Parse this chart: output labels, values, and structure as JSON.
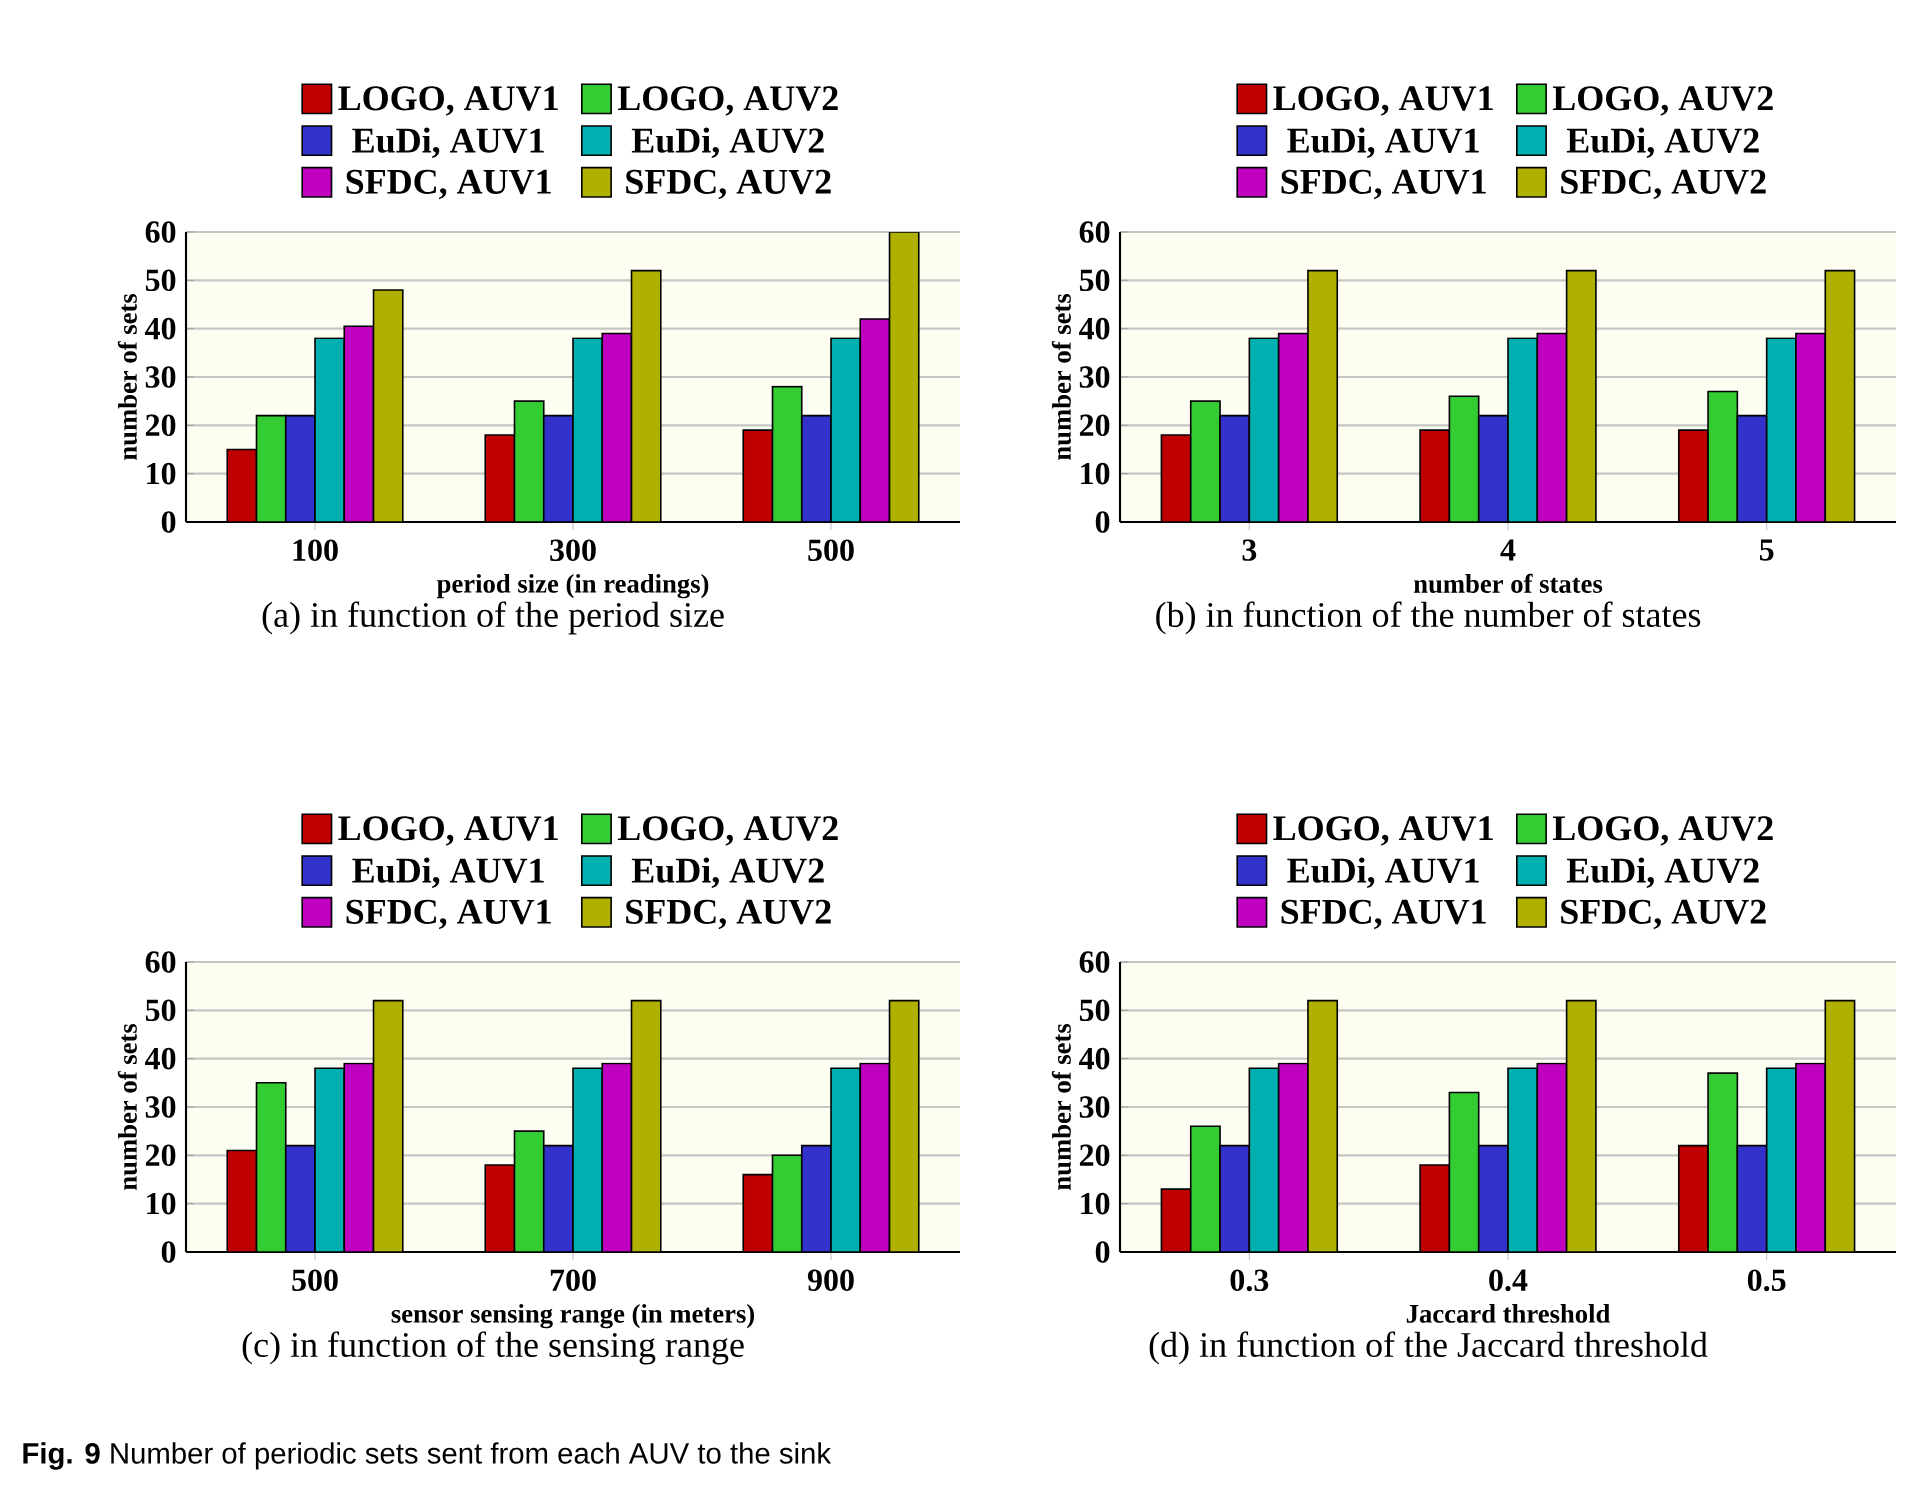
{
  "chart_data": [
    {
      "type": "bar",
      "xlabel": "period size (in readings)",
      "ylabel": "number of sets",
      "categories": [
        "100",
        "300",
        "500"
      ],
      "ylim": [
        0,
        60
      ],
      "yticks": [
        0,
        10,
        20,
        30,
        40,
        50,
        60
      ],
      "grid": "y",
      "legend": "top",
      "series": [
        {
          "name": "LOGO, AUV1",
          "color": "#c00000",
          "values": [
            15,
            18,
            19
          ]
        },
        {
          "name": "LOGO, AUV2",
          "color": "#33cc33",
          "values": [
            22,
            25,
            28
          ]
        },
        {
          "name": "EuDi, AUV1",
          "color": "#3333cc",
          "values": [
            22,
            22,
            22
          ]
        },
        {
          "name": "EuDi, AUV2",
          "color": "#00b0b0",
          "values": [
            38,
            38,
            38
          ]
        },
        {
          "name": "SFDC, AUV1",
          "color": "#c000c0",
          "values": [
            40.5,
            39,
            42
          ]
        },
        {
          "name": "SFDC, AUV2",
          "color": "#b0b000",
          "values": [
            48,
            52,
            60
          ]
        }
      ],
      "annotations": [
        "(a) in function of the period size"
      ]
    },
    {
      "type": "bar",
      "xlabel": "number of states",
      "ylabel": "number of sets",
      "categories": [
        "3",
        "4",
        "5"
      ],
      "ylim": [
        0,
        60
      ],
      "yticks": [
        0,
        10,
        20,
        30,
        40,
        50,
        60
      ],
      "grid": "y",
      "legend": "top",
      "series": [
        {
          "name": "LOGO, AUV1",
          "color": "#c00000",
          "values": [
            18,
            19,
            19
          ]
        },
        {
          "name": "LOGO, AUV2",
          "color": "#33cc33",
          "values": [
            25,
            26,
            27
          ]
        },
        {
          "name": "EuDi, AUV1",
          "color": "#3333cc",
          "values": [
            22,
            22,
            22
          ]
        },
        {
          "name": "EuDi, AUV2",
          "color": "#00b0b0",
          "values": [
            38,
            38,
            38
          ]
        },
        {
          "name": "SFDC, AUV1",
          "color": "#c000c0",
          "values": [
            39,
            39,
            39
          ]
        },
        {
          "name": "SFDC, AUV2",
          "color": "#b0b000",
          "values": [
            52,
            52,
            52
          ]
        }
      ],
      "annotations": [
        "(b) in function of the number of states"
      ]
    },
    {
      "type": "bar",
      "xlabel": "sensor sensing range (in meters)",
      "ylabel": "number of sets",
      "categories": [
        "500",
        "700",
        "900"
      ],
      "ylim": [
        0,
        60
      ],
      "yticks": [
        0,
        10,
        20,
        30,
        40,
        50,
        60
      ],
      "grid": "y",
      "legend": "top",
      "series": [
        {
          "name": "LOGO, AUV1",
          "color": "#c00000",
          "values": [
            21,
            18,
            16
          ]
        },
        {
          "name": "LOGO, AUV2",
          "color": "#33cc33",
          "values": [
            35,
            25,
            20
          ]
        },
        {
          "name": "EuDi, AUV1",
          "color": "#3333cc",
          "values": [
            22,
            22,
            22
          ]
        },
        {
          "name": "EuDi, AUV2",
          "color": "#00b0b0",
          "values": [
            38,
            38,
            38
          ]
        },
        {
          "name": "SFDC, AUV1",
          "color": "#c000c0",
          "values": [
            39,
            39,
            39
          ]
        },
        {
          "name": "SFDC, AUV2",
          "color": "#b0b000",
          "values": [
            52,
            52,
            52
          ]
        }
      ],
      "annotations": [
        "(c) in function of the sensing range"
      ]
    },
    {
      "type": "bar",
      "xlabel": "Jaccard threshold",
      "ylabel": "number of sets",
      "categories": [
        "0.3",
        "0.4",
        "0.5"
      ],
      "ylim": [
        0,
        60
      ],
      "yticks": [
        0,
        10,
        20,
        30,
        40,
        50,
        60
      ],
      "grid": "y",
      "legend": "top",
      "series": [
        {
          "name": "LOGO, AUV1",
          "color": "#c00000",
          "values": [
            13,
            18,
            22
          ]
        },
        {
          "name": "LOGO, AUV2",
          "color": "#33cc33",
          "values": [
            26,
            33,
            37
          ]
        },
        {
          "name": "EuDi, AUV1",
          "color": "#3333cc",
          "values": [
            22,
            22,
            22
          ]
        },
        {
          "name": "EuDi, AUV2",
          "color": "#00b0b0",
          "values": [
            38,
            38,
            38
          ]
        },
        {
          "name": "SFDC, AUV1",
          "color": "#c000c0",
          "values": [
            39,
            39,
            39
          ]
        },
        {
          "name": "SFDC, AUV2",
          "color": "#b0b000",
          "values": [
            52,
            52,
            52
          ]
        }
      ],
      "annotations": [
        "(d) in function of the Jaccard threshold",
        "**Fig. 9** Number of periodic sets sent from each AUV to the sink"
      ]
    }
  ]
}
